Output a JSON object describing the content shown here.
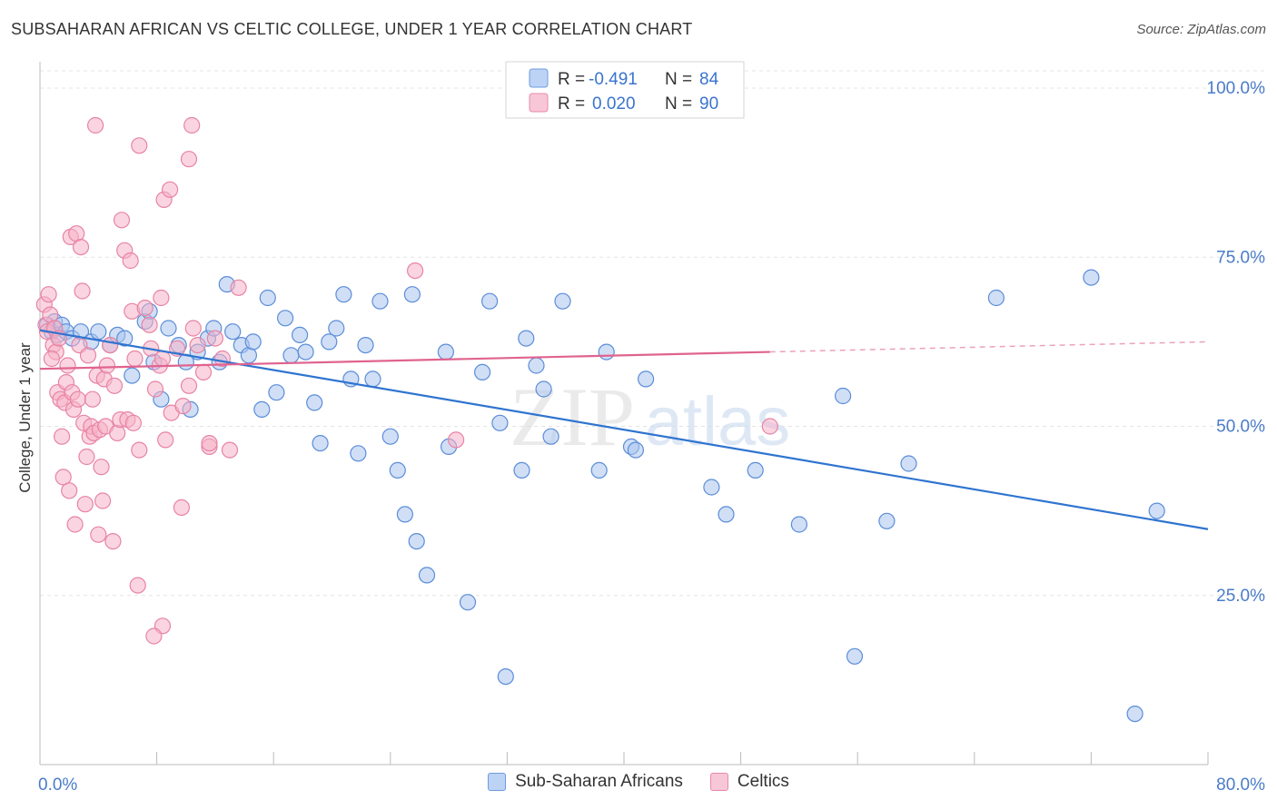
{
  "title": "SUBSAHARAN AFRICAN VS CELTIC COLLEGE, UNDER 1 YEAR CORRELATION CHART",
  "source": "Source: ZipAtlas.com",
  "watermark": {
    "zip": "ZIP",
    "atlas": "atlas"
  },
  "colors": {
    "blue_fill": "#a9c5ef",
    "blue_stroke": "#5b8dd9",
    "blue_line": "#2f74d0",
    "pink_fill": "#f5b3c8",
    "pink_stroke": "#e883a4",
    "pink_line": "#e0638f",
    "axis_text": "#4a7cc9",
    "grid": "#e4e4e4"
  },
  "chart_data": {
    "type": "scatter",
    "x_range": [
      0,
      80
    ],
    "y_range": [
      0,
      100
    ],
    "ylabel": "College, Under 1 year",
    "x_tick_labels": [
      {
        "value": 0,
        "label": "0.0%"
      },
      {
        "value": 80,
        "label": "80.0%"
      }
    ],
    "y_tick_labels": [
      {
        "value": 100,
        "label": "100.0%"
      },
      {
        "value": 75,
        "label": "75.0%"
      },
      {
        "value": 50,
        "label": "50.0%"
      },
      {
        "value": 25,
        "label": "25.0%"
      }
    ],
    "legend_stats": [
      {
        "r_label": "R =",
        "r_value": "-0.491",
        "n_label": "N =",
        "n_value": "84"
      },
      {
        "r_label": "R =",
        "r_value": "0.020",
        "n_label": "N =",
        "n_value": "90"
      }
    ],
    "series": [
      {
        "name": "Sub-Saharan Africans",
        "trend": {
          "x0": 0,
          "y0": 64.2,
          "x1": 80,
          "y1": 34.8,
          "solid_until": 80
        },
        "points": [
          [
            0.5,
            65
          ],
          [
            0.8,
            64
          ],
          [
            1.0,
            65.5
          ],
          [
            1.2,
            63.5
          ],
          [
            1.5,
            65
          ],
          [
            1.8,
            64
          ],
          [
            2.2,
            63
          ],
          [
            2.8,
            64
          ],
          [
            3.5,
            62.5
          ],
          [
            4.0,
            64
          ],
          [
            4.8,
            62
          ],
          [
            5.3,
            63.5
          ],
          [
            5.8,
            63
          ],
          [
            6.3,
            57.5
          ],
          [
            7.2,
            65.5
          ],
          [
            7.5,
            67
          ],
          [
            7.8,
            59.5
          ],
          [
            8.3,
            54
          ],
          [
            8.8,
            64.5
          ],
          [
            9.5,
            62
          ],
          [
            10.0,
            59.5
          ],
          [
            10.3,
            52.5
          ],
          [
            10.8,
            61
          ],
          [
            11.5,
            63
          ],
          [
            11.9,
            64.5
          ],
          [
            12.3,
            59.5
          ],
          [
            12.8,
            71
          ],
          [
            13.2,
            64
          ],
          [
            13.8,
            62
          ],
          [
            14.3,
            60.5
          ],
          [
            14.6,
            62.5
          ],
          [
            15.2,
            52.5
          ],
          [
            15.6,
            69
          ],
          [
            16.2,
            55
          ],
          [
            16.8,
            66
          ],
          [
            17.2,
            60.5
          ],
          [
            17.8,
            63.5
          ],
          [
            18.2,
            61
          ],
          [
            18.8,
            53.5
          ],
          [
            19.2,
            47.5
          ],
          [
            19.8,
            62.5
          ],
          [
            20.3,
            64.5
          ],
          [
            20.8,
            69.5
          ],
          [
            21.3,
            57
          ],
          [
            21.8,
            46
          ],
          [
            22.3,
            62
          ],
          [
            22.8,
            57
          ],
          [
            23.3,
            68.5
          ],
          [
            24.0,
            48.5
          ],
          [
            24.5,
            43.5
          ],
          [
            25.0,
            37
          ],
          [
            25.5,
            69.5
          ],
          [
            25.8,
            33
          ],
          [
            26.5,
            28
          ],
          [
            27.8,
            61
          ],
          [
            28.0,
            47
          ],
          [
            29.3,
            24
          ],
          [
            30.3,
            58
          ],
          [
            30.8,
            68.5
          ],
          [
            31.5,
            50.5
          ],
          [
            31.9,
            13
          ],
          [
            33.0,
            43.5
          ],
          [
            33.3,
            63
          ],
          [
            34.0,
            59
          ],
          [
            34.5,
            55.5
          ],
          [
            35.0,
            48.5
          ],
          [
            35.8,
            68.5
          ],
          [
            38.3,
            43.5
          ],
          [
            38.8,
            61
          ],
          [
            40.5,
            47
          ],
          [
            40.8,
            46.5
          ],
          [
            41.5,
            57
          ],
          [
            46.0,
            41
          ],
          [
            47.0,
            37
          ],
          [
            49.0,
            43.5
          ],
          [
            52.0,
            35.5
          ],
          [
            55.0,
            54.5
          ],
          [
            55.8,
            16
          ],
          [
            58.0,
            36
          ],
          [
            59.5,
            44.5
          ],
          [
            65.5,
            69
          ],
          [
            72.0,
            72
          ],
          [
            75.0,
            7.5
          ],
          [
            76.5,
            37.5
          ]
        ]
      },
      {
        "name": "Celtics",
        "trend": {
          "x0": 0,
          "y0": 58.5,
          "x1": 80,
          "y1": 62.5,
          "solid_until": 50
        },
        "points": [
          [
            0.3,
            68
          ],
          [
            0.4,
            65
          ],
          [
            0.5,
            64
          ],
          [
            0.6,
            69.5
          ],
          [
            0.7,
            66.5
          ],
          [
            0.9,
            62
          ],
          [
            1.0,
            64.5
          ],
          [
            1.1,
            61
          ],
          [
            1.2,
            55
          ],
          [
            1.3,
            63
          ],
          [
            1.4,
            54
          ],
          [
            1.5,
            48.5
          ],
          [
            1.6,
            42.5
          ],
          [
            1.7,
            53.5
          ],
          [
            1.8,
            56.5
          ],
          [
            1.9,
            59
          ],
          [
            2.0,
            40.5
          ],
          [
            2.1,
            78
          ],
          [
            2.2,
            55
          ],
          [
            2.3,
            52.5
          ],
          [
            2.4,
            35.5
          ],
          [
            2.5,
            78.5
          ],
          [
            2.6,
            54
          ],
          [
            2.7,
            62
          ],
          [
            2.8,
            76.5
          ],
          [
            2.9,
            70
          ],
          [
            3.0,
            50.5
          ],
          [
            3.1,
            38.5
          ],
          [
            3.2,
            45.5
          ],
          [
            3.3,
            60.5
          ],
          [
            3.4,
            48.5
          ],
          [
            3.5,
            50
          ],
          [
            3.6,
            54
          ],
          [
            3.7,
            49
          ],
          [
            3.8,
            94.5
          ],
          [
            3.9,
            57.5
          ],
          [
            4.0,
            34
          ],
          [
            4.1,
            49.5
          ],
          [
            4.2,
            44
          ],
          [
            4.3,
            39
          ],
          [
            4.4,
            57
          ],
          [
            4.5,
            50
          ],
          [
            4.6,
            59
          ],
          [
            4.8,
            62
          ],
          [
            5.0,
            33
          ],
          [
            5.1,
            56
          ],
          [
            5.3,
            49
          ],
          [
            5.5,
            51
          ],
          [
            5.6,
            80.5
          ],
          [
            5.8,
            76
          ],
          [
            6.0,
            51
          ],
          [
            6.2,
            74.5
          ],
          [
            6.3,
            67
          ],
          [
            6.4,
            50.5
          ],
          [
            6.5,
            60
          ],
          [
            6.7,
            26.5
          ],
          [
            6.8,
            91.5
          ],
          [
            7.2,
            67.5
          ],
          [
            7.6,
            61.5
          ],
          [
            7.9,
            55.5
          ],
          [
            8.2,
            59
          ],
          [
            8.4,
            60
          ],
          [
            8.6,
            48
          ],
          [
            9.0,
            52
          ],
          [
            9.4,
            61.5
          ],
          [
            9.8,
            53
          ],
          [
            10.2,
            56
          ],
          [
            10.5,
            64.5
          ],
          [
            10.8,
            62
          ],
          [
            11.2,
            58
          ],
          [
            11.6,
            47
          ],
          [
            12.0,
            63
          ],
          [
            12.5,
            60
          ],
          [
            13.0,
            46.5
          ],
          [
            6.8,
            46.5
          ],
          [
            7.5,
            65
          ],
          [
            8.3,
            69
          ],
          [
            8.5,
            83.5
          ],
          [
            8.9,
            85
          ],
          [
            9.7,
            38
          ],
          [
            10.2,
            89.5
          ],
          [
            10.4,
            94.5
          ],
          [
            11.6,
            47.5
          ],
          [
            13.6,
            70.5
          ],
          [
            8.4,
            20.5
          ],
          [
            7.8,
            19
          ],
          [
            25.7,
            73
          ],
          [
            28.5,
            48
          ],
          [
            50.0,
            50
          ],
          [
            0.8,
            60
          ]
        ]
      }
    ]
  },
  "legend_bottom": [
    "Sub-Saharan Africans",
    "Celtics"
  ]
}
